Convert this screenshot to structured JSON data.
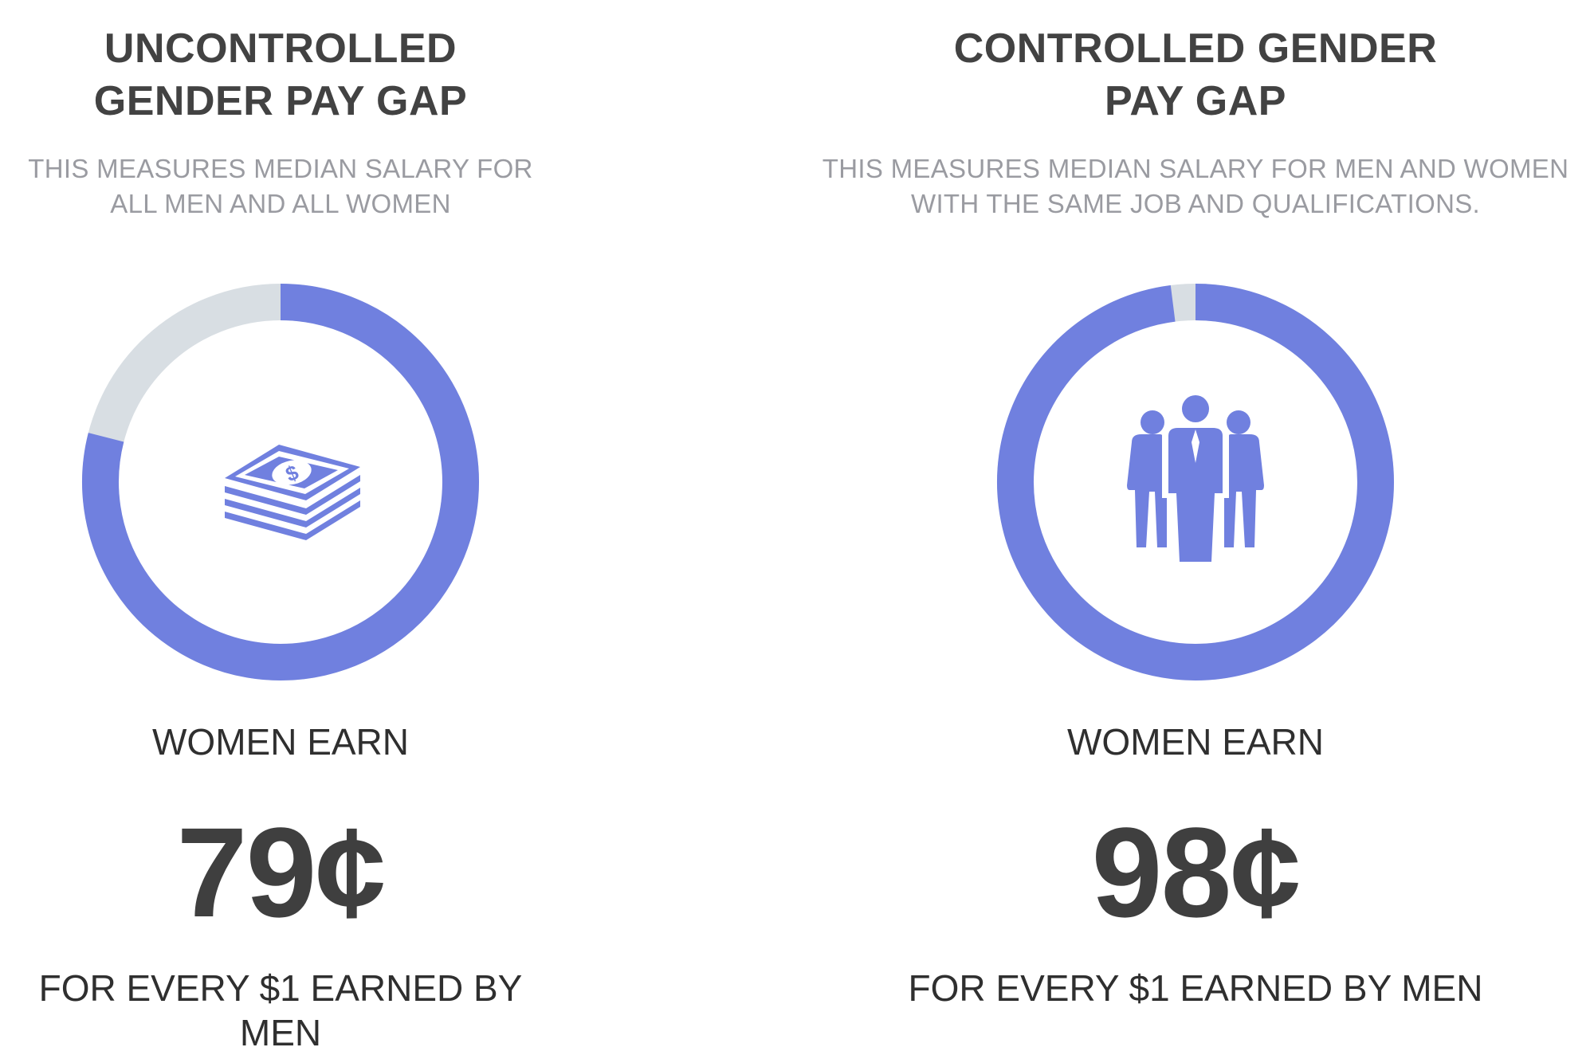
{
  "colors": {
    "accent": "#7080df",
    "track": "#d8dee3",
    "title": "#424242",
    "subtitle": "#9a9ba1",
    "body": "#2f2f2f",
    "value": "#3f3f3f"
  },
  "chart_data": [
    {
      "type": "pie",
      "title_line1": "UNCONTROLLED",
      "title_line2": "GENDER PAY GAP",
      "subtitle_line1": "THIS MEASURES MEDIAN SALARY FOR",
      "subtitle_line2": "ALL MEN AND ALL WOMEN",
      "value": 79,
      "total": 100,
      "icon": "money-stack-icon",
      "label_top": "WOMEN EARN",
      "value_label": "79¢",
      "label_bottom": "FOR EVERY $1 EARNED BY MEN"
    },
    {
      "type": "pie",
      "title_line1": "CONTROLLED GENDER",
      "title_line2": "PAY GAP",
      "subtitle_line1": "THIS MEASURES MEDIAN SALARY FOR MEN AND WOMEN",
      "subtitle_line2": "WITH THE SAME JOB AND QUALIFICATIONS.",
      "value": 98,
      "total": 100,
      "icon": "people-group-icon",
      "label_top": "WOMEN EARN",
      "value_label": "98¢",
      "label_bottom": "FOR EVERY $1 EARNED BY MEN"
    }
  ]
}
